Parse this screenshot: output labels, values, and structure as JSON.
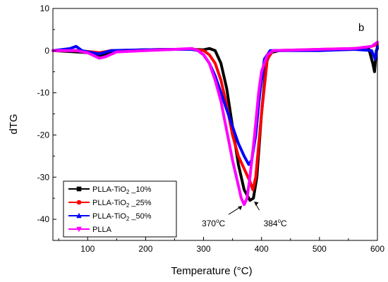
{
  "chart_data": {
    "type": "line",
    "panel_label": "b",
    "xlabel": "Temperature (°C)",
    "ylabel": "dTG",
    "xlim": [
      40,
      600
    ],
    "ylim": [
      -45,
      10
    ],
    "x_ticks": [
      100,
      200,
      300,
      400,
      500,
      600
    ],
    "y_ticks": [
      10,
      0,
      -10,
      -20,
      -30,
      -40
    ],
    "grid": false,
    "legend_position": "bottom-left",
    "series": [
      {
        "name": "PLLA-TiO2_10%",
        "name_parts": [
          "PLLA-TiO",
          "2",
          " _10%"
        ],
        "color": "#000000",
        "marker": "square",
        "points": [
          [
            40,
            0
          ],
          [
            80,
            -0.3
          ],
          [
            100,
            -0.5
          ],
          [
            120,
            -1.2
          ],
          [
            140,
            -0.4
          ],
          [
            160,
            0
          ],
          [
            200,
            0.2
          ],
          [
            250,
            0.3
          ],
          [
            280,
            0.3
          ],
          [
            300,
            0.2
          ],
          [
            310,
            0.5
          ],
          [
            320,
            0
          ],
          [
            330,
            -3
          ],
          [
            340,
            -9
          ],
          [
            350,
            -18
          ],
          [
            360,
            -27
          ],
          [
            370,
            -33
          ],
          [
            380,
            -35.5
          ],
          [
            386,
            -35
          ],
          [
            392,
            -30
          ],
          [
            400,
            -15
          ],
          [
            408,
            -3
          ],
          [
            415,
            -0.5
          ],
          [
            430,
            0
          ],
          [
            500,
            0.2
          ],
          [
            560,
            0.3
          ],
          [
            585,
            0.5
          ],
          [
            592,
            -3
          ],
          [
            595,
            -5
          ],
          [
            598,
            0
          ],
          [
            600,
            0.5
          ]
        ]
      },
      {
        "name": "PLLA-TiO2_25%",
        "name_parts": [
          "PLLA-TiO",
          "2",
          " _25%"
        ],
        "color": "#ff0000",
        "marker": "circle",
        "points": [
          [
            40,
            0
          ],
          [
            80,
            0
          ],
          [
            100,
            -0.2
          ],
          [
            120,
            -0.5
          ],
          [
            140,
            0
          ],
          [
            200,
            0.2
          ],
          [
            250,
            0.3
          ],
          [
            280,
            0.3
          ],
          [
            300,
            0
          ],
          [
            310,
            -1
          ],
          [
            320,
            -3
          ],
          [
            330,
            -7
          ],
          [
            340,
            -13
          ],
          [
            350,
            -20
          ],
          [
            360,
            -25
          ],
          [
            370,
            -28
          ],
          [
            380,
            -31
          ],
          [
            385,
            -33
          ],
          [
            390,
            -30
          ],
          [
            400,
            -15
          ],
          [
            410,
            -2
          ],
          [
            420,
            0
          ],
          [
            500,
            0.3
          ],
          [
            560,
            0.5
          ],
          [
            590,
            1
          ],
          [
            600,
            1.5
          ]
        ]
      },
      {
        "name": "PLLA-TiO2_50%",
        "name_parts": [
          "PLLA-TiO",
          "2",
          " _50%"
        ],
        "color": "#0000ff",
        "marker": "triangle",
        "points": [
          [
            40,
            0
          ],
          [
            70,
            0.5
          ],
          [
            80,
            1
          ],
          [
            90,
            0
          ],
          [
            100,
            -0.3
          ],
          [
            120,
            -0.8
          ],
          [
            140,
            0
          ],
          [
            200,
            0.2
          ],
          [
            250,
            0.3
          ],
          [
            280,
            0.3
          ],
          [
            290,
            0
          ],
          [
            300,
            -1
          ],
          [
            310,
            -3
          ],
          [
            320,
            -6
          ],
          [
            330,
            -10
          ],
          [
            340,
            -14
          ],
          [
            350,
            -18
          ],
          [
            360,
            -22
          ],
          [
            370,
            -25
          ],
          [
            378,
            -27
          ],
          [
            383,
            -26
          ],
          [
            390,
            -20
          ],
          [
            397,
            -10
          ],
          [
            405,
            -2
          ],
          [
            415,
            0
          ],
          [
            500,
            0
          ],
          [
            560,
            0.3
          ],
          [
            590,
            0
          ],
          [
            596,
            -2
          ],
          [
            600,
            1
          ]
        ]
      },
      {
        "name": "PLLA",
        "name_parts": [
          "PLLA",
          "",
          ""
        ],
        "color": "#ff00ff",
        "marker": "triangle-down",
        "points": [
          [
            40,
            0
          ],
          [
            80,
            0
          ],
          [
            100,
            -0.5
          ],
          [
            120,
            -1.8
          ],
          [
            130,
            -1.5
          ],
          [
            150,
            -0.3
          ],
          [
            200,
            0
          ],
          [
            250,
            0.3
          ],
          [
            280,
            0.5
          ],
          [
            290,
            0
          ],
          [
            300,
            -1
          ],
          [
            310,
            -3
          ],
          [
            320,
            -7
          ],
          [
            330,
            -12
          ],
          [
            340,
            -19
          ],
          [
            350,
            -26
          ],
          [
            360,
            -32
          ],
          [
            365,
            -35
          ],
          [
            370,
            -36.5
          ],
          [
            375,
            -35
          ],
          [
            380,
            -30
          ],
          [
            388,
            -20
          ],
          [
            395,
            -10
          ],
          [
            400,
            -5
          ],
          [
            410,
            -1
          ],
          [
            420,
            0
          ],
          [
            500,
            0.3
          ],
          [
            560,
            0.5
          ],
          [
            590,
            1
          ],
          [
            600,
            2
          ]
        ]
      }
    ],
    "annotations": [
      {
        "text": "370",
        "unit": "C",
        "x": 370,
        "y": -36.5
      },
      {
        "text": "384",
        "unit": "C",
        "x": 384,
        "y": -35.5
      }
    ]
  }
}
